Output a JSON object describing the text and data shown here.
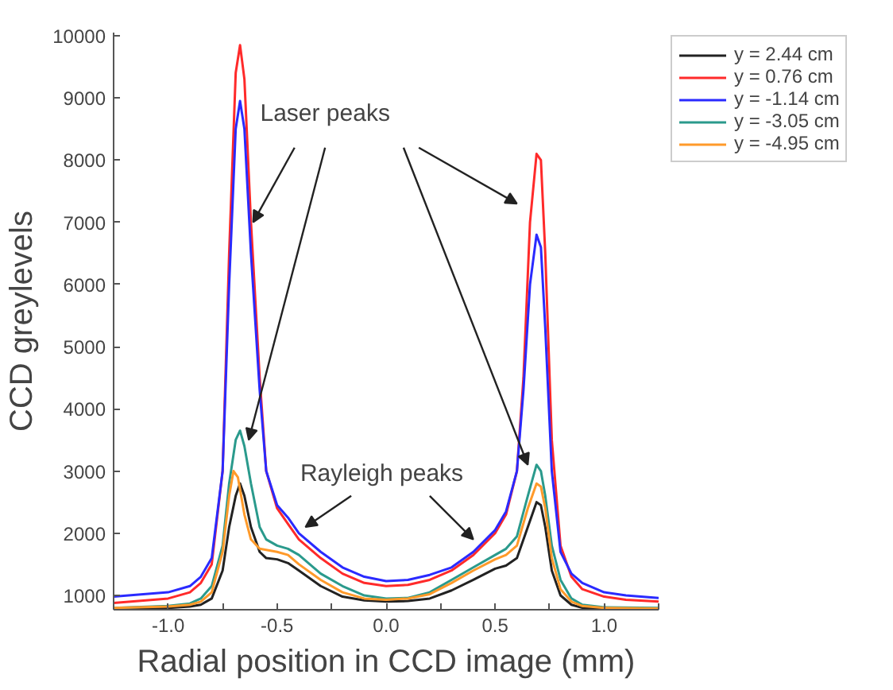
{
  "chart_data": {
    "type": "line",
    "xlabel": "Radial position in CCD image (mm)",
    "ylabel": "CCD greylevels",
    "xlim": [
      -1.25,
      1.25
    ],
    "ylim": [
      770,
      10050
    ],
    "xticks": [
      {
        "value": -1.25,
        "label": null
      },
      {
        "value": -1.0,
        "label": "-1.0"
      },
      {
        "value": -0.75,
        "label": null
      },
      -0.5,
      {
        "value": -0.25,
        "label": null
      },
      {
        "value": 0.0,
        "label": "0.0"
      },
      {
        "value": 0.25,
        "label": null
      },
      0.5,
      {
        "value": 0.75,
        "label": null
      },
      {
        "value": 1.0,
        "label": "1.0"
      },
      {
        "value": 1.25,
        "label": null
      }
    ],
    "yticks": [
      1000,
      2000,
      3000,
      4000,
      5000,
      6000,
      7000,
      8000,
      9000,
      10000
    ],
    "grid": false,
    "legend": "top right",
    "line_style": "solid",
    "marker": "none",
    "annotations": [
      {
        "text": "Laser peaks",
        "x": -0.61,
        "y": 7000
      },
      {
        "text": "Rayleigh peaks",
        "x": -0.37,
        "y": 2100
      }
    ],
    "series": [
      {
        "name": "y = 2.44 cm",
        "color": "#222222",
        "x": [
          -1.25,
          -1.0,
          -0.9,
          -0.85,
          -0.8,
          -0.75,
          -0.72,
          -0.69,
          -0.67,
          -0.65,
          -0.62,
          -0.58,
          -0.55,
          -0.5,
          -0.45,
          -0.4,
          -0.3,
          -0.2,
          -0.1,
          0,
          0.1,
          0.2,
          0.3,
          0.4,
          0.5,
          0.55,
          0.6,
          0.65,
          0.69,
          0.71,
          0.73,
          0.76,
          0.8,
          0.85,
          0.9,
          1.0,
          1.25
        ],
        "values": [
          790,
          800,
          820,
          850,
          950,
          1400,
          2100,
          2600,
          2800,
          2600,
          2100,
          1700,
          1600,
          1580,
          1520,
          1400,
          1150,
          980,
          920,
          900,
          910,
          950,
          1080,
          1250,
          1430,
          1480,
          1600,
          2100,
          2500,
          2450,
          2100,
          1400,
          1000,
          850,
          800,
          790,
          780
        ]
      },
      {
        "name": "y = 0.76 cm",
        "color": "#ff2a2a",
        "x": [
          -1.25,
          -1.0,
          -0.9,
          -0.85,
          -0.8,
          -0.75,
          -0.72,
          -0.69,
          -0.67,
          -0.65,
          -0.62,
          -0.58,
          -0.55,
          -0.5,
          -0.45,
          -0.4,
          -0.3,
          -0.2,
          -0.1,
          0,
          0.1,
          0.2,
          0.3,
          0.4,
          0.5,
          0.55,
          0.6,
          0.63,
          0.66,
          0.69,
          0.71,
          0.73,
          0.76,
          0.8,
          0.85,
          0.9,
          1.0,
          1.1,
          1.25
        ],
        "values": [
          880,
          950,
          1050,
          1200,
          1500,
          3000,
          6500,
          9400,
          9850,
          9300,
          7000,
          4500,
          3000,
          2400,
          2150,
          1900,
          1600,
          1350,
          1200,
          1150,
          1170,
          1250,
          1400,
          1650,
          2000,
          2300,
          3000,
          4500,
          7000,
          8100,
          8000,
          6500,
          3500,
          1800,
          1300,
          1100,
          980,
          930,
          900
        ]
      },
      {
        "name": "y = -1.14 cm",
        "color": "#2a2aff",
        "x": [
          -1.25,
          -1.0,
          -0.9,
          -0.85,
          -0.8,
          -0.75,
          -0.72,
          -0.69,
          -0.67,
          -0.65,
          -0.62,
          -0.58,
          -0.55,
          -0.5,
          -0.45,
          -0.4,
          -0.3,
          -0.2,
          -0.1,
          0,
          0.1,
          0.2,
          0.3,
          0.4,
          0.5,
          0.55,
          0.6,
          0.63,
          0.66,
          0.69,
          0.71,
          0.73,
          0.76,
          0.8,
          0.85,
          0.9,
          1.0,
          1.1,
          1.25
        ],
        "values": [
          980,
          1050,
          1150,
          1300,
          1600,
          3000,
          6000,
          8500,
          8950,
          8500,
          6500,
          4300,
          3000,
          2450,
          2250,
          2000,
          1700,
          1450,
          1300,
          1230,
          1250,
          1330,
          1450,
          1700,
          2050,
          2350,
          3000,
          4300,
          6000,
          6800,
          6600,
          5300,
          3000,
          1700,
          1350,
          1200,
          1050,
          1000,
          960
        ]
      },
      {
        "name": "y = -3.05 cm",
        "color": "#2a9a8c",
        "x": [
          -1.25,
          -1.0,
          -0.9,
          -0.85,
          -0.8,
          -0.75,
          -0.72,
          -0.69,
          -0.67,
          -0.65,
          -0.62,
          -0.58,
          -0.55,
          -0.5,
          -0.45,
          -0.4,
          -0.3,
          -0.2,
          -0.1,
          0,
          0.1,
          0.2,
          0.3,
          0.4,
          0.5,
          0.55,
          0.6,
          0.65,
          0.69,
          0.71,
          0.73,
          0.76,
          0.8,
          0.85,
          0.9,
          1.0,
          1.25
        ],
        "values": [
          800,
          830,
          870,
          950,
          1150,
          1800,
          2800,
          3500,
          3650,
          3400,
          2800,
          2100,
          1900,
          1800,
          1750,
          1650,
          1350,
          1150,
          1000,
          950,
          960,
          1050,
          1250,
          1450,
          1650,
          1750,
          1950,
          2600,
          3100,
          3000,
          2600,
          1800,
          1250,
          950,
          850,
          810,
          800
        ]
      },
      {
        "name": "y = -4.95 cm",
        "color": "#ff9a2a",
        "x": [
          -1.25,
          -1.0,
          -0.9,
          -0.85,
          -0.8,
          -0.75,
          -0.72,
          -0.7,
          -0.68,
          -0.65,
          -0.62,
          -0.58,
          -0.5,
          -0.45,
          -0.4,
          -0.3,
          -0.2,
          -0.1,
          0,
          0.1,
          0.2,
          0.3,
          0.4,
          0.5,
          0.55,
          0.6,
          0.65,
          0.69,
          0.71,
          0.73,
          0.76,
          0.8,
          0.85,
          0.9,
          1.0,
          1.25
        ],
        "values": [
          800,
          820,
          850,
          900,
          1050,
          1700,
          2600,
          3000,
          2900,
          2300,
          1900,
          1750,
          1700,
          1650,
          1500,
          1250,
          1050,
          950,
          930,
          950,
          1020,
          1200,
          1400,
          1580,
          1650,
          1800,
          2400,
          2800,
          2750,
          2400,
          1600,
          1100,
          900,
          830,
          800,
          790
        ]
      }
    ]
  }
}
